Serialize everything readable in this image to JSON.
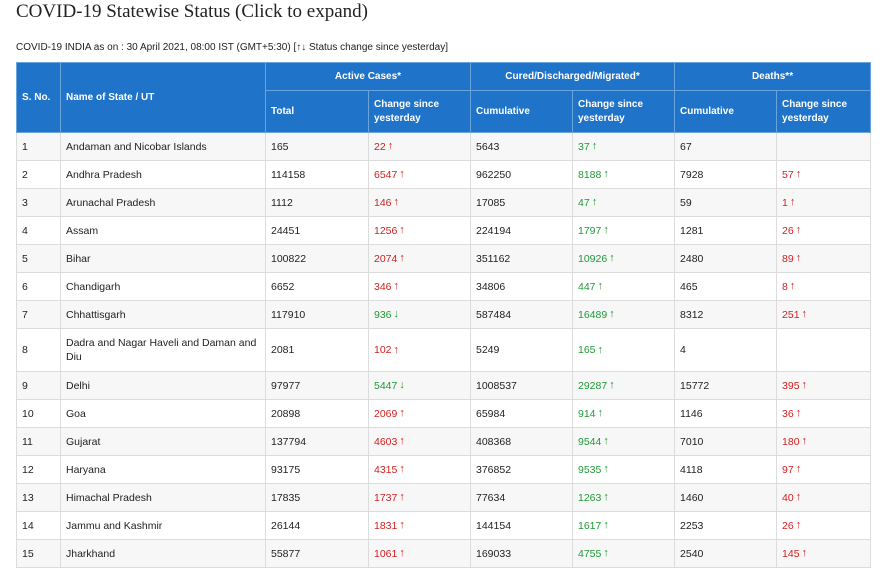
{
  "page": {
    "title": "COVID-19 Statewise Status (Click to expand)",
    "subtitle": "COVID-19 INDIA as on : 30 April 2021, 08:00 IST (GMT+5:30) [↑↓ Status change since yesterday]"
  },
  "colors": {
    "header_bg": "#1f73c8",
    "increase_red": "#d32020",
    "increase_green": "#1f9a36"
  },
  "icons": {
    "up": "↑",
    "down": "↓"
  },
  "table": {
    "headers": {
      "sno": "S. No.",
      "state": "Name of State / UT",
      "active": "Active Cases*",
      "cured": "Cured/Discharged/Migrated*",
      "deaths": "Deaths**",
      "total": "Total",
      "change": "Change since yesterday",
      "cumulative": "Cumulative"
    },
    "rows": [
      {
        "sno": "1",
        "state": "Andaman and Nicobar Islands",
        "total": "165",
        "active_change": "22",
        "active_dir": "up",
        "cured_cum": "5643",
        "cured_change": "37",
        "cured_dir": "up",
        "deaths_cum": "67",
        "deaths_change": "",
        "deaths_dir": ""
      },
      {
        "sno": "2",
        "state": "Andhra Pradesh",
        "total": "114158",
        "active_change": "6547",
        "active_dir": "up",
        "cured_cum": "962250",
        "cured_change": "8188",
        "cured_dir": "up",
        "deaths_cum": "7928",
        "deaths_change": "57",
        "deaths_dir": "up"
      },
      {
        "sno": "3",
        "state": "Arunachal Pradesh",
        "total": "1112",
        "active_change": "146",
        "active_dir": "up",
        "cured_cum": "17085",
        "cured_change": "47",
        "cured_dir": "up",
        "deaths_cum": "59",
        "deaths_change": "1",
        "deaths_dir": "up"
      },
      {
        "sno": "4",
        "state": "Assam",
        "total": "24451",
        "active_change": "1256",
        "active_dir": "up",
        "cured_cum": "224194",
        "cured_change": "1797",
        "cured_dir": "up",
        "deaths_cum": "1281",
        "deaths_change": "26",
        "deaths_dir": "up"
      },
      {
        "sno": "5",
        "state": "Bihar",
        "total": "100822",
        "active_change": "2074",
        "active_dir": "up",
        "cured_cum": "351162",
        "cured_change": "10926",
        "cured_dir": "up",
        "deaths_cum": "2480",
        "deaths_change": "89",
        "deaths_dir": "up"
      },
      {
        "sno": "6",
        "state": "Chandigarh",
        "total": "6652",
        "active_change": "346",
        "active_dir": "up",
        "cured_cum": "34806",
        "cured_change": "447",
        "cured_dir": "up",
        "deaths_cum": "465",
        "deaths_change": "8",
        "deaths_dir": "up"
      },
      {
        "sno": "7",
        "state": "Chhattisgarh",
        "total": "117910",
        "active_change": "936",
        "active_dir": "down",
        "cured_cum": "587484",
        "cured_change": "16489",
        "cured_dir": "up",
        "deaths_cum": "8312",
        "deaths_change": "251",
        "deaths_dir": "up"
      },
      {
        "sno": "8",
        "state": "Dadra and Nagar Haveli and Daman and Diu",
        "total": "2081",
        "active_change": "102",
        "active_dir": "up",
        "cured_cum": "5249",
        "cured_change": "165",
        "cured_dir": "up",
        "deaths_cum": "4",
        "deaths_change": "",
        "deaths_dir": ""
      },
      {
        "sno": "9",
        "state": "Delhi",
        "total": "97977",
        "active_change": "5447",
        "active_dir": "down",
        "cured_cum": "1008537",
        "cured_change": "29287",
        "cured_dir": "up",
        "deaths_cum": "15772",
        "deaths_change": "395",
        "deaths_dir": "up"
      },
      {
        "sno": "10",
        "state": "Goa",
        "total": "20898",
        "active_change": "2069",
        "active_dir": "up",
        "cured_cum": "65984",
        "cured_change": "914",
        "cured_dir": "up",
        "deaths_cum": "1146",
        "deaths_change": "36",
        "deaths_dir": "up"
      },
      {
        "sno": "11",
        "state": "Gujarat",
        "total": "137794",
        "active_change": "4603",
        "active_dir": "up",
        "cured_cum": "408368",
        "cured_change": "9544",
        "cured_dir": "up",
        "deaths_cum": "7010",
        "deaths_change": "180",
        "deaths_dir": "up"
      },
      {
        "sno": "12",
        "state": "Haryana",
        "total": "93175",
        "active_change": "4315",
        "active_dir": "up",
        "cured_cum": "376852",
        "cured_change": "9535",
        "cured_dir": "up",
        "deaths_cum": "4118",
        "deaths_change": "97",
        "deaths_dir": "up"
      },
      {
        "sno": "13",
        "state": "Himachal Pradesh",
        "total": "17835",
        "active_change": "1737",
        "active_dir": "up",
        "cured_cum": "77634",
        "cured_change": "1263",
        "cured_dir": "up",
        "deaths_cum": "1460",
        "deaths_change": "40",
        "deaths_dir": "up"
      },
      {
        "sno": "14",
        "state": "Jammu and Kashmir",
        "total": "26144",
        "active_change": "1831",
        "active_dir": "up",
        "cured_cum": "144154",
        "cured_change": "1617",
        "cured_dir": "up",
        "deaths_cum": "2253",
        "deaths_change": "26",
        "deaths_dir": "up"
      },
      {
        "sno": "15",
        "state": "Jharkhand",
        "total": "55877",
        "active_change": "1061",
        "active_dir": "up",
        "cured_cum": "169033",
        "cured_change": "4755",
        "cured_dir": "up",
        "deaths_cum": "2540",
        "deaths_change": "145",
        "deaths_dir": "up"
      }
    ]
  }
}
